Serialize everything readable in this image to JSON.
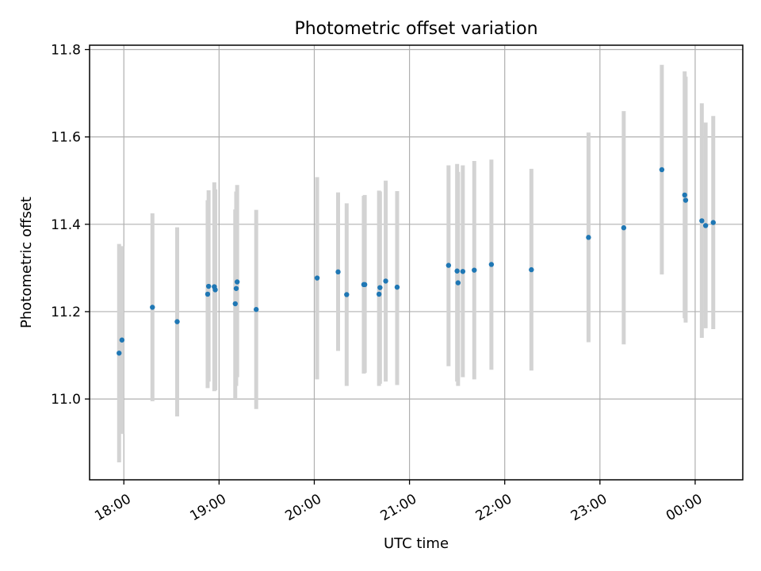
{
  "chart_data": {
    "type": "scatter",
    "title": "Photometric offset variation",
    "xlabel": "UTC time",
    "ylabel": "Photometric offset",
    "x_unit": "hours since 18:00 UTC",
    "xlim": [
      -0.36,
      6.5
    ],
    "ylim": [
      10.815,
      11.81
    ],
    "x_ticks": [
      {
        "value": 0,
        "label": "18:00"
      },
      {
        "value": 1,
        "label": "19:00"
      },
      {
        "value": 2,
        "label": "20:00"
      },
      {
        "value": 3,
        "label": "21:00"
      },
      {
        "value": 4,
        "label": "22:00"
      },
      {
        "value": 5,
        "label": "23:00"
      },
      {
        "value": 6,
        "label": "00:00"
      }
    ],
    "y_ticks": [
      {
        "value": 11.0,
        "label": "11.0"
      },
      {
        "value": 11.2,
        "label": "11.2"
      },
      {
        "value": 11.4,
        "label": "11.4"
      },
      {
        "value": 11.6,
        "label": "11.6"
      },
      {
        "value": 11.8,
        "label": "11.8"
      }
    ],
    "grid": true,
    "marker_color": "#1f77b4",
    "errorbar_color": "#d3d3d3",
    "points": [
      {
        "x": -0.05,
        "y": 11.105,
        "lo": 10.855,
        "hi": 11.355
      },
      {
        "x": -0.02,
        "y": 11.135,
        "lo": 10.92,
        "hi": 11.35
      },
      {
        "x": 0.3,
        "y": 11.21,
        "lo": 10.995,
        "hi": 11.425
      },
      {
        "x": 0.56,
        "y": 11.177,
        "lo": 10.96,
        "hi": 11.393
      },
      {
        "x": 0.88,
        "y": 11.24,
        "lo": 11.025,
        "hi": 11.455
      },
      {
        "x": 0.89,
        "y": 11.258,
        "lo": 11.04,
        "hi": 11.478
      },
      {
        "x": 0.95,
        "y": 11.257,
        "lo": 11.018,
        "hi": 11.496
      },
      {
        "x": 0.96,
        "y": 11.25,
        "lo": 11.02,
        "hi": 11.48
      },
      {
        "x": 1.17,
        "y": 11.218,
        "lo": 11.002,
        "hi": 11.434
      },
      {
        "x": 1.18,
        "y": 11.253,
        "lo": 11.03,
        "hi": 11.475
      },
      {
        "x": 1.19,
        "y": 11.268,
        "lo": 11.05,
        "hi": 11.49
      },
      {
        "x": 1.39,
        "y": 11.205,
        "lo": 10.977,
        "hi": 11.433
      },
      {
        "x": 2.03,
        "y": 11.277,
        "lo": 11.045,
        "hi": 11.508
      },
      {
        "x": 2.25,
        "y": 11.291,
        "lo": 11.11,
        "hi": 11.473
      },
      {
        "x": 2.34,
        "y": 11.239,
        "lo": 11.03,
        "hi": 11.448
      },
      {
        "x": 2.52,
        "y": 11.262,
        "lo": 11.058,
        "hi": 11.465
      },
      {
        "x": 2.53,
        "y": 11.262,
        "lo": 11.06,
        "hi": 11.467
      },
      {
        "x": 2.68,
        "y": 11.24,
        "lo": 11.03,
        "hi": 11.477
      },
      {
        "x": 2.69,
        "y": 11.255,
        "lo": 11.035,
        "hi": 11.475
      },
      {
        "x": 2.75,
        "y": 11.27,
        "lo": 11.04,
        "hi": 11.5
      },
      {
        "x": 2.87,
        "y": 11.256,
        "lo": 11.032,
        "hi": 11.476
      },
      {
        "x": 3.41,
        "y": 11.306,
        "lo": 11.075,
        "hi": 11.535
      },
      {
        "x": 3.5,
        "y": 11.293,
        "lo": 11.04,
        "hi": 11.538
      },
      {
        "x": 3.51,
        "y": 11.266,
        "lo": 11.03,
        "hi": 11.52
      },
      {
        "x": 3.56,
        "y": 11.292,
        "lo": 11.05,
        "hi": 11.535
      },
      {
        "x": 3.68,
        "y": 11.295,
        "lo": 11.045,
        "hi": 11.545
      },
      {
        "x": 3.86,
        "y": 11.308,
        "lo": 11.067,
        "hi": 11.548
      },
      {
        "x": 4.28,
        "y": 11.296,
        "lo": 11.065,
        "hi": 11.527
      },
      {
        "x": 4.88,
        "y": 11.37,
        "lo": 11.13,
        "hi": 11.61
      },
      {
        "x": 5.25,
        "y": 11.392,
        "lo": 11.125,
        "hi": 11.659
      },
      {
        "x": 5.65,
        "y": 11.525,
        "lo": 11.285,
        "hi": 11.765
      },
      {
        "x": 5.89,
        "y": 11.467,
        "lo": 11.185,
        "hi": 11.75
      },
      {
        "x": 5.9,
        "y": 11.455,
        "lo": 11.175,
        "hi": 11.738
      },
      {
        "x": 6.07,
        "y": 11.408,
        "lo": 11.14,
        "hi": 11.677
      },
      {
        "x": 6.11,
        "y": 11.397,
        "lo": 11.162,
        "hi": 11.633
      },
      {
        "x": 6.19,
        "y": 11.404,
        "lo": 11.16,
        "hi": 11.648
      }
    ]
  }
}
